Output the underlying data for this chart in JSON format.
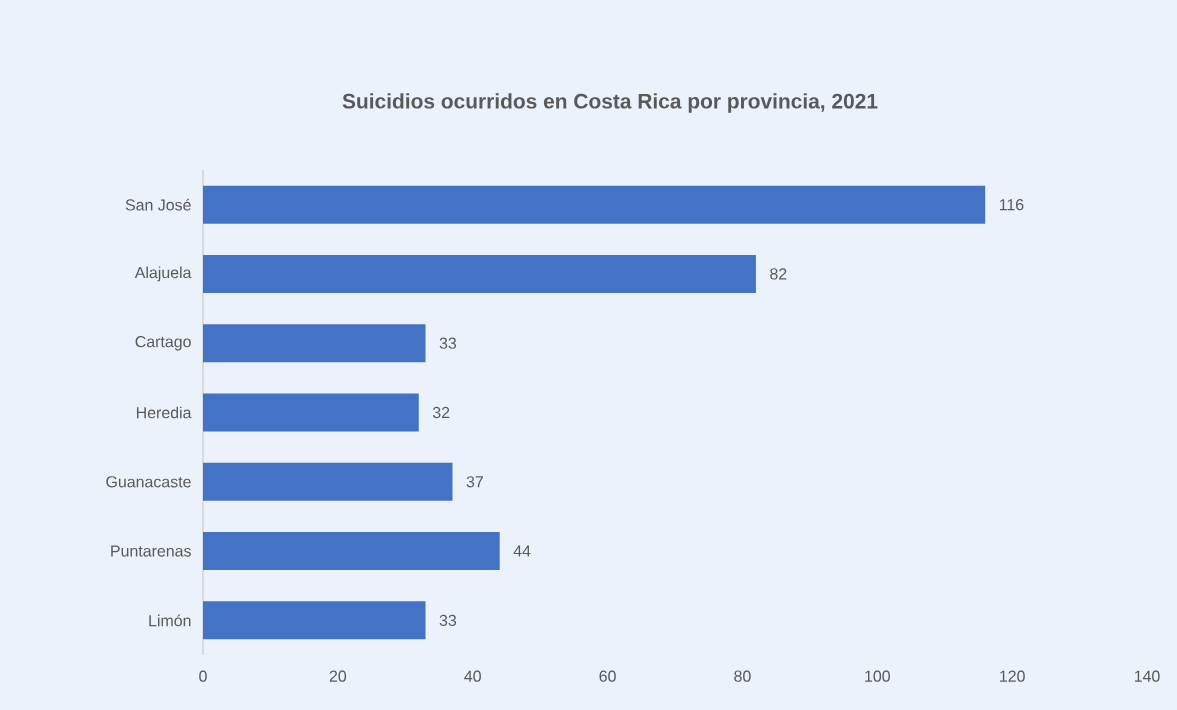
{
  "chart_data": {
    "type": "bar",
    "orientation": "horizontal",
    "title": "Suicidios ocurridos en Costa Rica por provincia, 2021",
    "categories": [
      "San José",
      "Alajuela",
      "Cartago",
      "Heredia",
      "Guanacaste",
      "Puntarenas",
      "Limón"
    ],
    "values": [
      116,
      82,
      33,
      32,
      37,
      44,
      33
    ],
    "color": "#4472c4",
    "data_labels": true,
    "grid": false,
    "xlim": [
      0,
      140
    ],
    "xticks": [
      0,
      20,
      40,
      60,
      80,
      100,
      120,
      140
    ]
  }
}
